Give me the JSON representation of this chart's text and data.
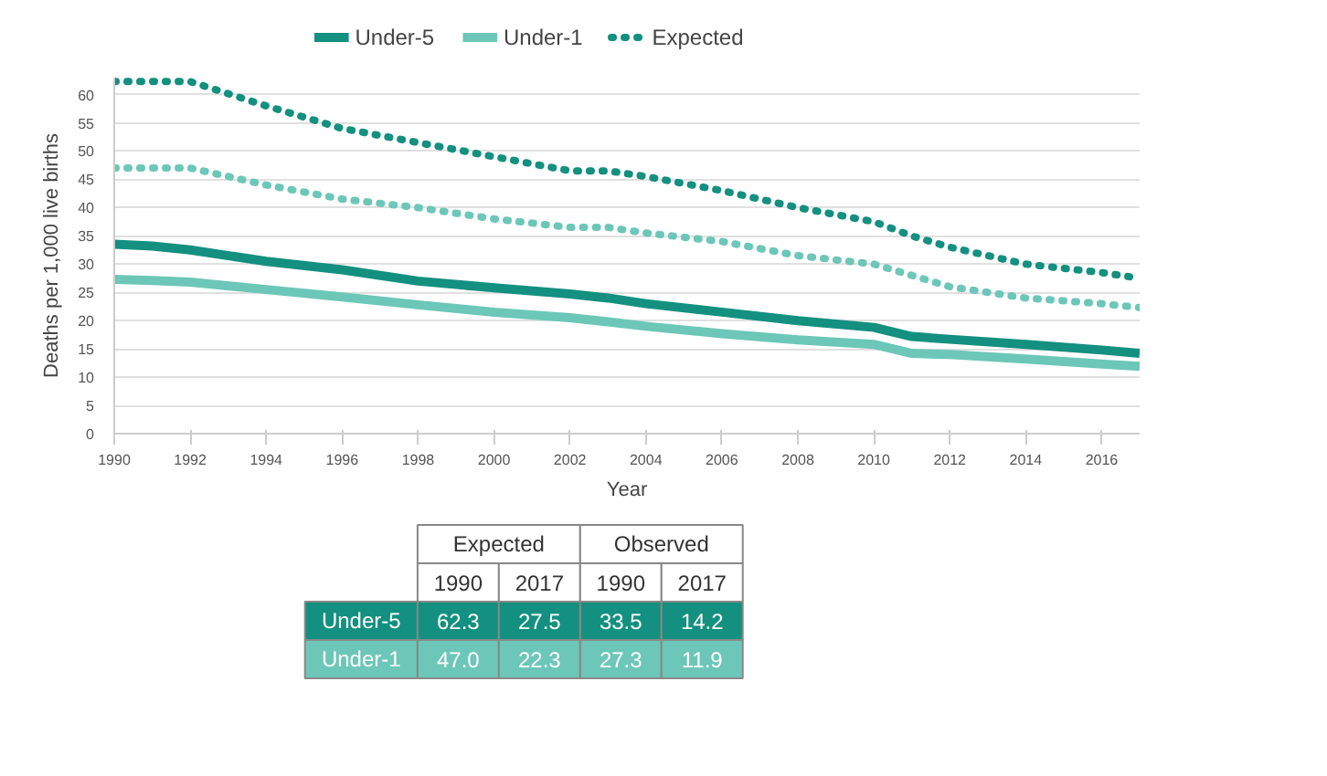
{
  "chart_data": {
    "type": "line",
    "xlabel": "Year",
    "ylabel": "Deaths per 1,000 live births",
    "x": [
      1990,
      1991,
      1992,
      1994,
      1996,
      1998,
      2000,
      2002,
      2003,
      2004,
      2006,
      2008,
      2010,
      2011,
      2012,
      2014,
      2016,
      2017
    ],
    "series": [
      {
        "name": "Under-5",
        "color": "#13907f",
        "line_style": "solid",
        "values": [
          33.5,
          33.2,
          32.5,
          30.5,
          29,
          27,
          25.8,
          24.7,
          24,
          23,
          21.5,
          20,
          18.8,
          17.2,
          16.7,
          15.8,
          14.8,
          14.2
        ]
      },
      {
        "name": "Under-1",
        "color": "#6cc7b8",
        "line_style": "solid",
        "values": [
          27.3,
          27.1,
          26.8,
          25.5,
          24.2,
          22.8,
          21.5,
          20.5,
          19.8,
          19,
          17.7,
          16.6,
          15.8,
          14.2,
          14,
          13.2,
          12.3,
          11.9
        ]
      },
      {
        "name": "Expected",
        "color": "#13907f",
        "line_style": "dotted",
        "values": [
          62.3,
          62.3,
          62.3,
          58,
          54,
          51.5,
          49,
          46.5,
          46.5,
          45.5,
          43,
          40,
          37.5,
          35,
          33,
          30,
          28.5,
          27.5
        ]
      },
      {
        "color": "#6cc7b8",
        "line_style": "dotted",
        "values": [
          47.0,
          47.0,
          47.0,
          44,
          41.5,
          40,
          38,
          36.5,
          36.5,
          35.5,
          34,
          31.5,
          30,
          28,
          26,
          24,
          23,
          22.3
        ]
      }
    ],
    "xlim": [
      1990,
      2017
    ],
    "ylim": [
      0,
      63
    ],
    "xticks": [
      1990,
      1992,
      1994,
      1996,
      1998,
      2000,
      2002,
      2004,
      2006,
      2008,
      2010,
      2012,
      2014,
      2016
    ],
    "yticks": [
      0,
      5,
      10,
      15,
      20,
      25,
      30,
      35,
      40,
      45,
      50,
      55,
      60
    ],
    "grid": "y",
    "legend": "top",
    "marker": "none",
    "annotations": [
      "Expected",
      "Observed",
      "1990",
      "2017",
      "1990",
      "2017",
      "Under-5",
      "62.3",
      "27.5",
      "33.5",
      "14.2",
      "Under-1",
      "47.0",
      "22.3",
      "27.3",
      "11.9"
    ]
  }
}
